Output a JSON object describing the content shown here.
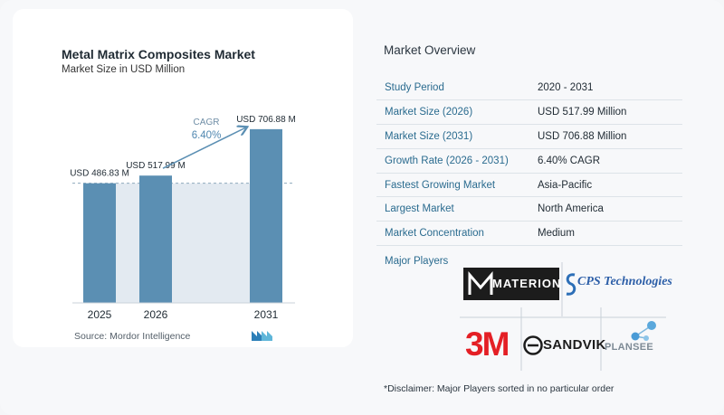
{
  "chart_data": {
    "type": "bar",
    "title": "Metal Matrix Composites Market",
    "subtitle": "Market Size in USD Million",
    "categories": [
      "2025",
      "2026",
      "2031"
    ],
    "values": [
      486.83,
      517.99,
      706.88
    ],
    "value_labels": [
      "USD 486.83 M",
      "USD 517.99 M",
      "USD 706.88 M"
    ],
    "cagr_label": "CAGR",
    "cagr_value": "6.40%",
    "ylim": [
      0,
      720
    ],
    "colors": {
      "bar": "#5b8fb3",
      "shade": "#e3eaf1",
      "arrow": "#5b8fb3"
    }
  },
  "source": "Source:  Mordor Intelligence",
  "overview": {
    "title": "Market Overview",
    "rows": [
      {
        "label": "Study Period",
        "value": "2020 - 2031"
      },
      {
        "label": "Market Size (2026)",
        "value": "USD 517.99 Million"
      },
      {
        "label": "Market Size (2031)",
        "value": "USD 706.88 Million"
      },
      {
        "label": "Growth Rate (2026 - 2031)",
        "value": "6.40% CAGR"
      },
      {
        "label": "Fastest Growing Market",
        "value": "Asia-Pacific"
      },
      {
        "label": "Largest Market",
        "value": "North America"
      },
      {
        "label": "Market Concentration",
        "value": "Medium"
      }
    ]
  },
  "major_players": {
    "label": "Major Players",
    "logos": [
      "MATERION",
      "CPS Technologies",
      "3M",
      "SANDVIK",
      "PLANSEE"
    ]
  },
  "disclaimer": "*Disclaimer: Major Players sorted in no particular order"
}
